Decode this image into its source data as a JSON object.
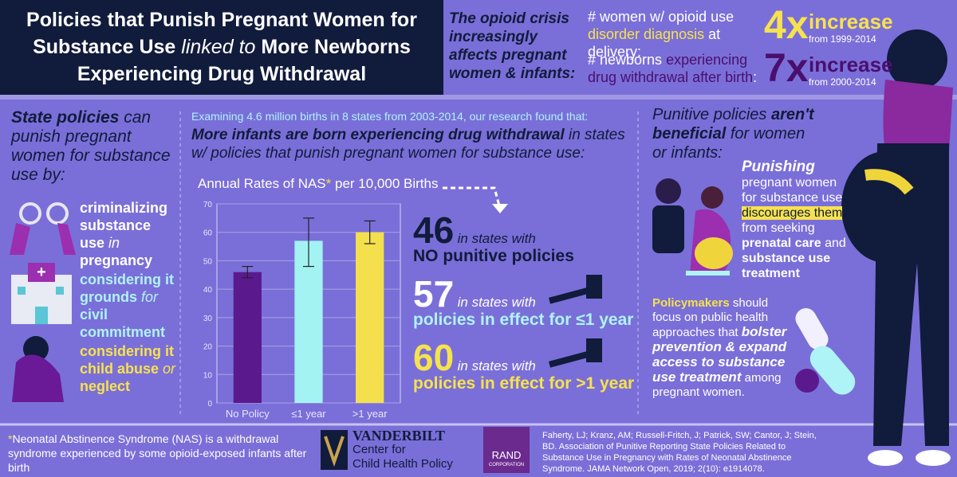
{
  "header": {
    "title": [
      "Policies that Punish Pregnant Women for Substance Use",
      "linked to",
      "More Newborns Experiencing Drug Withdrawal"
    ]
  },
  "crisis": {
    "lead": "The opioid crisis increasingly affects pregnant women & infants:",
    "stats": [
      {
        "label": [
          "# women w/ opioid use",
          "disorder diagnosis",
          "at delivery:"
        ],
        "multiplier": "4x",
        "word": "increase",
        "period": "from 1999-2014"
      },
      {
        "label": [
          "# newborns",
          "experiencing drug withdrawal after birth",
          ":"
        ],
        "multiplier": "7x",
        "word": "increase",
        "period": "from 2000-2014"
      }
    ]
  },
  "left": {
    "heading": [
      "State policies",
      "can punish pregnant women for substance use by:"
    ],
    "items": [
      [
        "criminalizing substance use",
        "in",
        "pregnancy"
      ],
      [
        "considering it grounds",
        "for",
        "civil commitment"
      ],
      [
        "considering it child abuse",
        "or",
        "neglect"
      ]
    ]
  },
  "middle": {
    "intro": "Examining 4.6 million births in 8 states from 2003-2014, our research found that:",
    "headline": [
      "More infants are born experiencing drug withdrawal",
      "in states w/ policies that punish pregnant women for substance use:"
    ]
  },
  "chart_data": {
    "type": "bar",
    "title": [
      "Annual Rates of NAS",
      "*",
      " per 10,000 Births"
    ],
    "categories": [
      "No Policy",
      "≤1 year",
      ">1 year"
    ],
    "values": [
      46,
      57,
      60
    ],
    "error_lower": [
      44,
      48,
      56
    ],
    "error_upper": [
      48,
      65,
      64
    ],
    "colors": [
      "#5a1a8e",
      "#a3f3f3",
      "#f4e04d"
    ],
    "ylim": [
      0,
      70
    ],
    "yticks": [
      0,
      10,
      20,
      30,
      40,
      50,
      60,
      70
    ],
    "grid": true
  },
  "results": [
    {
      "text": "in states with",
      "emphasis": "NO punitive policies"
    },
    {
      "text": "in states with",
      "emphasis": "policies in effect for ≤1 year"
    },
    {
      "text": "in states with",
      "emphasis": "policies in effect for >1 year"
    }
  ],
  "right": {
    "heading": [
      "Punitive policies",
      "aren't beneficial",
      "for women or infants:"
    ],
    "punish": [
      "Punishing",
      "pregnant women for substance use",
      "discourages them",
      "from seeking",
      "prenatal care",
      "and",
      "substance use treatment"
    ],
    "policy": [
      "Policymakers",
      "should focus on public health approaches that",
      "bolster prevention & expand access to substance use treatment",
      "among pregnant women."
    ]
  },
  "footer": {
    "note": [
      "*",
      "Neonatal Abstinence Syndrome (NAS) is a withdrawal syndrome experienced by some opioid-exposed infants after birth"
    ],
    "vanderbilt": [
      "VANDERBILT",
      "Center for",
      "Child Health Policy"
    ],
    "rand": [
      "RAND",
      "CORPORATION"
    ],
    "citation": "Faherty, LJ; Kranz, AM; Russell-Fritch, J; Patrick, SW; Cantor, J; Stein, BD. Association of Punitive Reporting State Policies Related to Substance Use in Pregnancy with Rates of Neonatal Abstinence Syndrome. JAMA Network Open, 2019; 2(10): e1914078."
  }
}
